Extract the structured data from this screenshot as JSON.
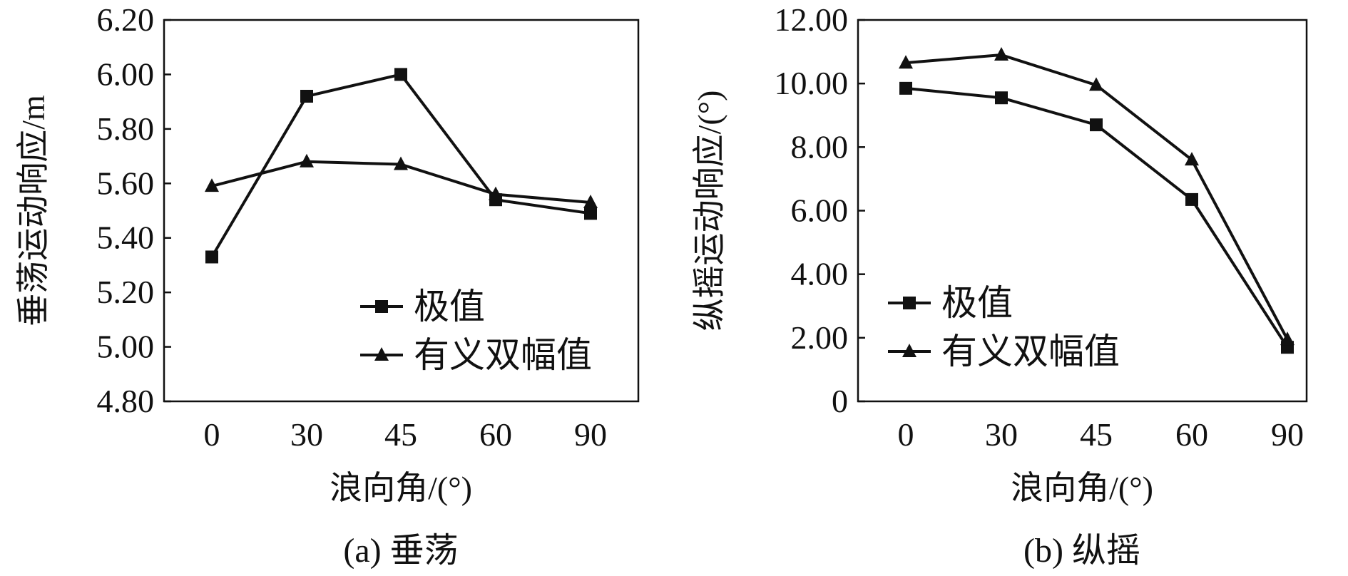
{
  "chart_data": [
    {
      "type": "line",
      "caption": "(a) 垂荡",
      "xlabel": "浪向角/(°)",
      "ylabel": "垂荡运动响应/m",
      "categories": [
        "0",
        "30",
        "45",
        "60",
        "90"
      ],
      "ylim": [
        4.8,
        6.2
      ],
      "yticks": [
        4.8,
        5.0,
        5.2,
        5.4,
        5.6,
        5.8,
        6.0,
        6.2
      ],
      "ytick_labels": [
        "4.80",
        "5.00",
        "5.20",
        "5.40",
        "5.60",
        "5.80",
        "6.00",
        "6.20"
      ],
      "series": [
        {
          "name": "极值",
          "marker": "square",
          "values": [
            5.33,
            5.92,
            6.0,
            5.54,
            5.49
          ]
        },
        {
          "name": "有义双幅值",
          "marker": "triangle",
          "values": [
            5.59,
            5.68,
            5.67,
            5.56,
            5.53
          ]
        }
      ],
      "legend": "bottom-right",
      "grid": false
    },
    {
      "type": "line",
      "caption": "(b) 纵摇",
      "xlabel": "浪向角/(°)",
      "ylabel": "纵摇运动响应/(°)",
      "categories": [
        "0",
        "30",
        "45",
        "60",
        "90"
      ],
      "ylim": [
        0,
        12
      ],
      "yticks": [
        0,
        2,
        4,
        6,
        8,
        10,
        12
      ],
      "ytick_labels": [
        "0",
        "2.00",
        "4.00",
        "6.00",
        "8.00",
        "10.00",
        "12.00"
      ],
      "series": [
        {
          "name": "极值",
          "marker": "square",
          "values": [
            9.85,
            9.55,
            8.7,
            6.35,
            1.7
          ]
        },
        {
          "name": "有义双幅值",
          "marker": "triangle",
          "values": [
            10.65,
            10.9,
            9.95,
            7.6,
            1.95
          ]
        }
      ],
      "legend": "bottom-left",
      "grid": false
    }
  ]
}
